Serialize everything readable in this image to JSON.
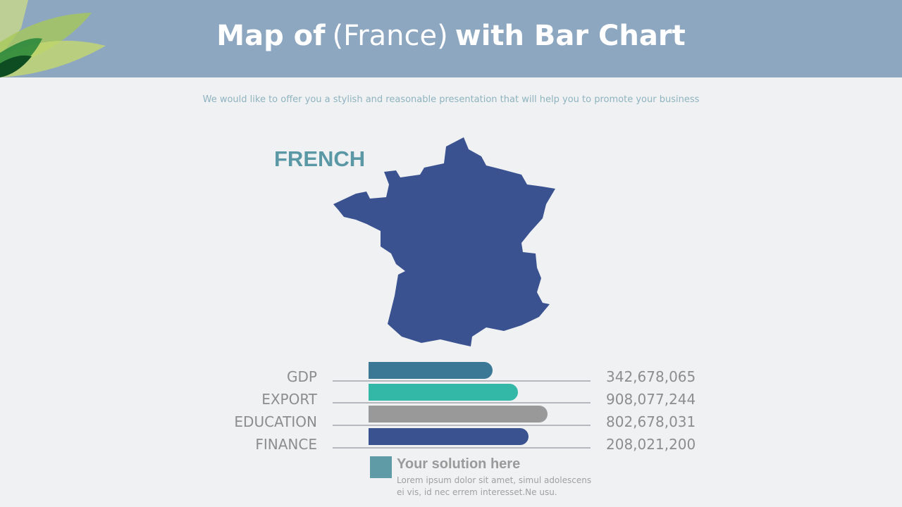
{
  "header": {
    "title_bold_start": "Map of",
    "title_middle": "(France)",
    "title_bold_end": "with Bar Chart"
  },
  "subtitle": "We would like to offer you a stylish and reasonable presentation that will help you to promote your business",
  "map": {
    "label": "FRENCH"
  },
  "rows": [
    {
      "label": "GDP",
      "value": "342,678,065"
    },
    {
      "label": "EXPORT",
      "value": "908,077,244"
    },
    {
      "label": "EDUCATION",
      "value": "802,678,031"
    },
    {
      "label": "FINANCE",
      "value": "208,021,200"
    }
  ],
  "footer": {
    "heading": "Your solution here",
    "body": "Lorem ipsum dolor sit amet, simul adolescens ei vis, id nec errem interesset.Ne usu."
  }
}
